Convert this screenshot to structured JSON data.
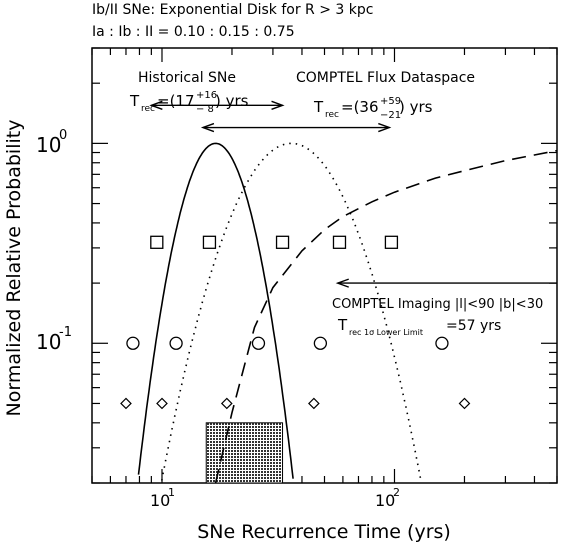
{
  "chart_data": {
    "type": "line",
    "title_line1": "Ib/II SNe: Exponential Disk for R > 3 kpc",
    "title_line2": "Ia : Ib : II = 0.10 : 0.15 : 0.75",
    "xlabel": "SNe Recurrence Time (yrs)",
    "ylabel": "Normalized Relative Probability",
    "xscale": "log",
    "yscale": "log",
    "xlim": [
      5,
      500
    ],
    "ylim": [
      0.02,
      3
    ],
    "x_major_ticks": [
      10,
      100
    ],
    "x_tick_labels": [
      "10",
      "10"
    ],
    "x_tick_exponents": [
      "1",
      "2"
    ],
    "y_tick_labels": [
      "10",
      "10"
    ],
    "y_tick_exponents": [
      "0",
      "-1"
    ],
    "annotations": {
      "historical_label": "Historical SNe",
      "historical_trec_prefix": "T",
      "historical_trec_sub": "rec",
      "historical_trec_value": "=(17",
      "historical_trec_plus": "+16",
      "historical_trec_minus": "− 8",
      "historical_trec_suffix": ") yrs",
      "comptel_flux_label": "COMPTEL Flux Dataspace",
      "comptel_trec_prefix": "T",
      "comptel_trec_sub": "rec",
      "comptel_trec_value": "=(36",
      "comptel_trec_plus": "+59",
      "comptel_trec_minus": "−21",
      "comptel_trec_suffix": ") yrs",
      "imaging_label": "COMPTEL Imaging |l|<90 |b|<30",
      "imaging_trec_prefix": "T",
      "imaging_trec_sub": "rec 1σ Lower Limit",
      "imaging_trec_value": "=57 yrs"
    },
    "series": [
      {
        "style": "solid",
        "center": 17,
        "sigma_dex": 0.12
      },
      {
        "style": "dotted",
        "center": 36,
        "sigma_dex": 0.2
      },
      {
        "style": "dashed",
        "x": [
          17,
          20,
          25,
          30,
          40,
          50,
          60,
          80,
          100,
          150,
          200,
          300,
          500
        ],
        "y": [
          0.02,
          0.045,
          0.12,
          0.19,
          0.29,
          0.37,
          0.43,
          0.51,
          0.57,
          0.67,
          0.73,
          0.82,
          0.92
        ]
      }
    ],
    "markers": {
      "squares": {
        "y": 0.32,
        "x": [
          9.5,
          16,
          33,
          58,
          97
        ]
      },
      "circles": {
        "y": 0.1,
        "x": [
          7.5,
          11.5,
          26,
          48,
          160
        ]
      },
      "diamonds": {
        "y": 0.05,
        "x": [
          7,
          10,
          19,
          45,
          200
        ]
      }
    },
    "ranges": [
      {
        "name": "historical",
        "x": [
          9,
          33
        ],
        "y": 1.55
      },
      {
        "name": "comptel-flux",
        "x": [
          15,
          95
        ],
        "y": 1.2
      },
      {
        "name": "comptel-imaging",
        "x": [
          57,
          500
        ],
        "y": 0.2
      }
    ],
    "shaded_box": {
      "x": [
        15.5,
        33
      ],
      "y": [
        0.02,
        0.04
      ]
    }
  }
}
